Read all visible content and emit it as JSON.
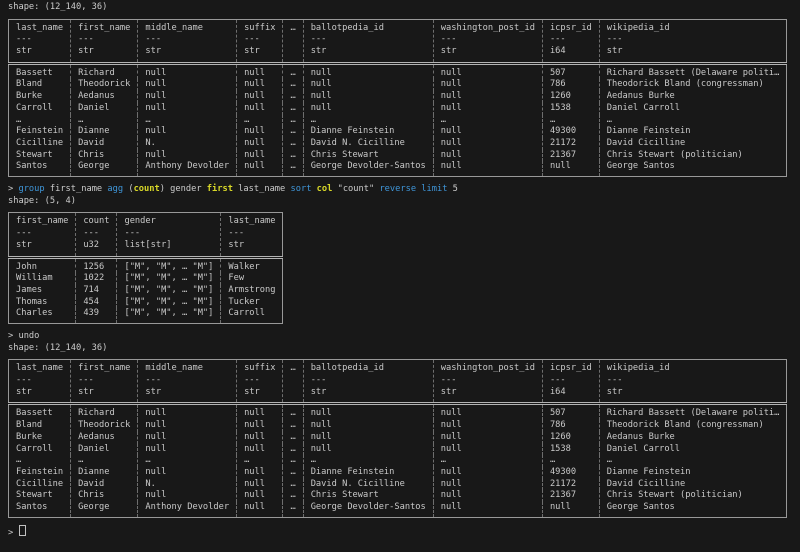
{
  "colors": {
    "background": "#181818",
    "text": "#cccccc",
    "keyword_blue": "#3f96d9",
    "function_yellow": "#d9d928",
    "table_border_gray": "#989898"
  },
  "output": {
    "shape_big": "shape: (12_140, 36)",
    "shape_group": "shape: (5, 4)"
  },
  "big_table": {
    "columns": [
      {
        "name": "last_name",
        "dash": "---",
        "dtype": "str"
      },
      {
        "name": "first_name",
        "dash": "---",
        "dtype": "str"
      },
      {
        "name": "middle_name",
        "dash": "---",
        "dtype": "str"
      },
      {
        "name": "suffix",
        "dash": "---",
        "dtype": "str"
      },
      {
        "name": "…",
        "dash": "",
        "dtype": ""
      },
      {
        "name": "ballotpedia_id",
        "dash": "---",
        "dtype": "str"
      },
      {
        "name": "washington_post_id",
        "dash": "---",
        "dtype": "str"
      },
      {
        "name": "icpsr_id",
        "dash": "---",
        "dtype": "i64"
      },
      {
        "name": "wikipedia_id",
        "dash": "---",
        "dtype": "str"
      }
    ],
    "rows": [
      [
        "Bassett",
        "Richard",
        "null",
        "null",
        "…",
        "null",
        "null",
        "507",
        "Richard Bassett (Delaware politi…"
      ],
      [
        "Bland",
        "Theodorick",
        "null",
        "null",
        "…",
        "null",
        "null",
        "786",
        "Theodorick Bland (congressman)"
      ],
      [
        "Burke",
        "Aedanus",
        "null",
        "null",
        "…",
        "null",
        "null",
        "1260",
        "Aedanus Burke"
      ],
      [
        "Carroll",
        "Daniel",
        "null",
        "null",
        "…",
        "null",
        "null",
        "1538",
        "Daniel Carroll"
      ],
      [
        "…",
        "…",
        "…",
        "…",
        "…",
        "…",
        "…",
        "…",
        "…"
      ],
      [
        "Feinstein",
        "Dianne",
        "null",
        "null",
        "…",
        "Dianne Feinstein",
        "null",
        "49300",
        "Dianne Feinstein"
      ],
      [
        "Cicilline",
        "David",
        "N.",
        "null",
        "…",
        "David N. Cicilline",
        "null",
        "21172",
        "David Cicilline"
      ],
      [
        "Stewart",
        "Chris",
        "null",
        "null",
        "…",
        "Chris Stewart",
        "null",
        "21367",
        "Chris Stewart (politician)"
      ],
      [
        "Santos",
        "George",
        "Anthony Devolder",
        "null",
        "…",
        "George Devolder-Santos",
        "null",
        "null",
        "George Santos"
      ]
    ]
  },
  "group_table": {
    "columns": [
      {
        "name": "first_name",
        "dash": "---",
        "dtype": "str"
      },
      {
        "name": "count",
        "dash": "---",
        "dtype": "u32"
      },
      {
        "name": "gender",
        "dash": "---",
        "dtype": "list[str]"
      },
      {
        "name": "last_name",
        "dash": "---",
        "dtype": "str"
      }
    ],
    "rows": [
      [
        "John",
        "1256",
        "[\"M\", \"M\", … \"M\"]",
        "Walker"
      ],
      [
        "William",
        "1022",
        "[\"M\", \"M\", … \"M\"]",
        "Few"
      ],
      [
        "James",
        "714",
        "[\"M\", \"M\", … \"M\"]",
        "Armstrong"
      ],
      [
        "Thomas",
        "454",
        "[\"M\", \"M\", … \"M\"]",
        "Tucker"
      ],
      [
        "Charles",
        "439",
        "[\"M\", \"M\", … \"M\"]",
        "Carroll"
      ]
    ]
  },
  "commands": {
    "group_command_tokens": [
      {
        "t": "> ",
        "s": "plain"
      },
      {
        "t": "group",
        "s": "kw"
      },
      {
        "t": " first_name ",
        "s": "plain"
      },
      {
        "t": "agg",
        "s": "kw"
      },
      {
        "t": " (",
        "s": "plain"
      },
      {
        "t": "count",
        "s": "fn"
      },
      {
        "t": ") gender ",
        "s": "plain"
      },
      {
        "t": "first",
        "s": "fn"
      },
      {
        "t": " last_name ",
        "s": "plain"
      },
      {
        "t": "sort",
        "s": "kw"
      },
      {
        "t": " ",
        "s": "plain"
      },
      {
        "t": "col",
        "s": "fn"
      },
      {
        "t": " \"count\" ",
        "s": "plain"
      },
      {
        "t": "reverse",
        "s": "kw"
      },
      {
        "t": " ",
        "s": "plain"
      },
      {
        "t": "limit",
        "s": "kw"
      },
      {
        "t": " 5",
        "s": "plain"
      }
    ],
    "undo_tokens": [
      {
        "t": "> ",
        "s": "plain"
      },
      {
        "t": "undo",
        "s": "plain"
      }
    ],
    "prompt_symbol": "> "
  }
}
